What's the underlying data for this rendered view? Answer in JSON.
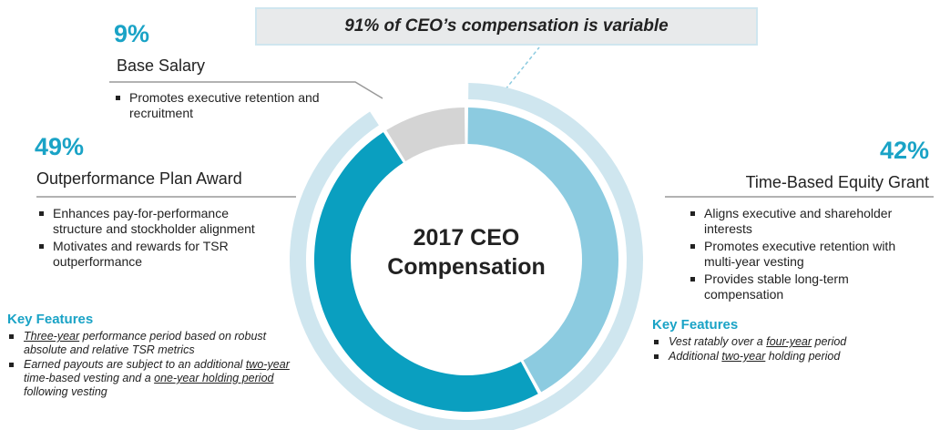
{
  "chart_data": {
    "type": "donut",
    "title": "2017 CEO Compensation",
    "annotation": {
      "text": "91% of CEO’s compensation is variable",
      "value": 91
    },
    "categories": [
      "Time-Based Equity Grant",
      "Outperformance Plan Award",
      "Base Salary"
    ],
    "values": [
      42,
      49,
      9
    ],
    "value_labels": [
      "42%",
      "49%",
      "9%"
    ],
    "colors": [
      "#8ccbe0",
      "#0a9fc0",
      "#d4d4d4"
    ],
    "callouts": [
      {
        "bullets": [
          "Aligns executive and shareholder interests",
          "Promotes executive retention with multi-year vesting",
          "Provides stable long-term compensation"
        ],
        "key_features_title": "Key Features",
        "key_features": [
          [
            {
              "text": "Vest ratably over a "
            },
            {
              "text": "four-year",
              "underline": true
            },
            {
              "text": " period"
            }
          ],
          [
            {
              "text": "Additional "
            },
            {
              "text": "two-year",
              "underline": true
            },
            {
              "text": " holding period"
            }
          ]
        ]
      },
      {
        "bullets": [
          "Enhances pay-for-performance structure and stockholder alignment",
          "Motivates and rewards for TSR outperformance"
        ],
        "key_features_title": "Key Features",
        "key_features": [
          [
            {
              "text": "Three-year",
              "underline": true
            },
            {
              "text": " performance period based on robust absolute and relative TSR metrics"
            }
          ],
          [
            {
              "text": "Earned payouts are subject to an additional "
            },
            {
              "text": "two-year",
              "underline": true
            },
            {
              "text": " time-based vesting and a "
            },
            {
              "text": "one-year holding period",
              "underline": true
            },
            {
              "text": " following vesting"
            }
          ]
        ]
      },
      {
        "bullets": [
          "Promotes executive retention and recruitment"
        ]
      }
    ]
  }
}
